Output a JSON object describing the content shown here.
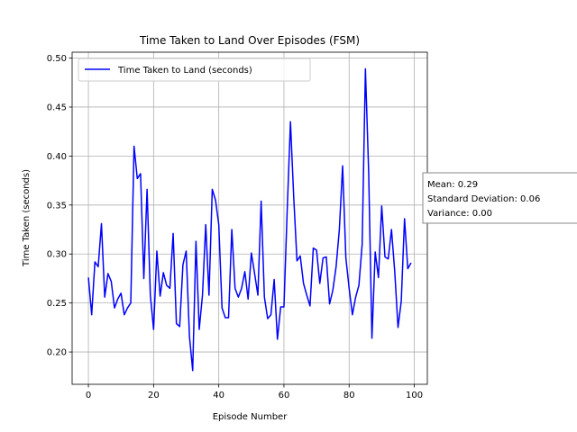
{
  "chart_data": {
    "type": "line",
    "title": "Time Taken to Land Over Episodes (FSM)",
    "xlabel": "Episode Number",
    "ylabel": "Time Taken (seconds)",
    "xlim": [
      -5,
      104
    ],
    "ylim": [
      0.167,
      0.506
    ],
    "xticks": [
      0,
      20,
      40,
      60,
      80,
      100
    ],
    "yticks": [
      0.2,
      0.25,
      0.3,
      0.35,
      0.4,
      0.45,
      0.5
    ],
    "xtick_labels": [
      "0",
      "20",
      "40",
      "60",
      "80",
      "100"
    ],
    "ytick_labels": [
      "0.20",
      "0.25",
      "0.30",
      "0.35",
      "0.40",
      "0.45",
      "0.50"
    ],
    "grid": true,
    "legend_position": "upper-left",
    "series": [
      {
        "name": "Time Taken to Land (seconds)",
        "color": "#0000ff",
        "x": [
          0,
          1,
          2,
          3,
          4,
          5,
          6,
          7,
          8,
          9,
          10,
          11,
          12,
          13,
          14,
          15,
          16,
          17,
          18,
          19,
          20,
          21,
          22,
          23,
          24,
          25,
          26,
          27,
          28,
          29,
          30,
          31,
          32,
          33,
          34,
          35,
          36,
          37,
          38,
          39,
          40,
          41,
          42,
          43,
          44,
          45,
          46,
          47,
          48,
          49,
          50,
          51,
          52,
          53,
          54,
          55,
          56,
          57,
          58,
          59,
          60,
          61,
          62,
          63,
          64,
          65,
          66,
          67,
          68,
          69,
          70,
          71,
          72,
          73,
          74,
          75,
          76,
          77,
          78,
          79,
          80,
          81,
          82,
          83,
          84,
          85,
          86,
          87,
          88,
          89,
          90,
          91,
          92,
          93,
          94,
          95,
          96,
          97,
          98,
          99
        ],
        "y": [
          0.276,
          0.238,
          0.292,
          0.287,
          0.331,
          0.256,
          0.28,
          0.272,
          0.245,
          0.254,
          0.26,
          0.238,
          0.245,
          0.25,
          0.41,
          0.377,
          0.382,
          0.275,
          0.366,
          0.258,
          0.223,
          0.303,
          0.257,
          0.281,
          0.268,
          0.265,
          0.321,
          0.229,
          0.226,
          0.289,
          0.303,
          0.216,
          0.181,
          0.313,
          0.223,
          0.258,
          0.33,
          0.258,
          0.366,
          0.355,
          0.33,
          0.245,
          0.235,
          0.235,
          0.325,
          0.265,
          0.256,
          0.265,
          0.282,
          0.254,
          0.301,
          0.28,
          0.258,
          0.354,
          0.256,
          0.234,
          0.238,
          0.274,
          0.213,
          0.246,
          0.246,
          0.345,
          0.435,
          0.358,
          0.293,
          0.298,
          0.27,
          0.258,
          0.247,
          0.306,
          0.304,
          0.27,
          0.296,
          0.297,
          0.249,
          0.263,
          0.287,
          0.325,
          0.39,
          0.296,
          0.265,
          0.238,
          0.256,
          0.268,
          0.31,
          0.489,
          0.383,
          0.214,
          0.302,
          0.276,
          0.349,
          0.297,
          0.295,
          0.325,
          0.282,
          0.225,
          0.252,
          0.336,
          0.285,
          0.291
        ]
      }
    ],
    "annotation": {
      "lines": [
        "Mean: 0.29",
        "Standard Deviation: 0.06",
        "Variance: 0.00"
      ]
    }
  }
}
